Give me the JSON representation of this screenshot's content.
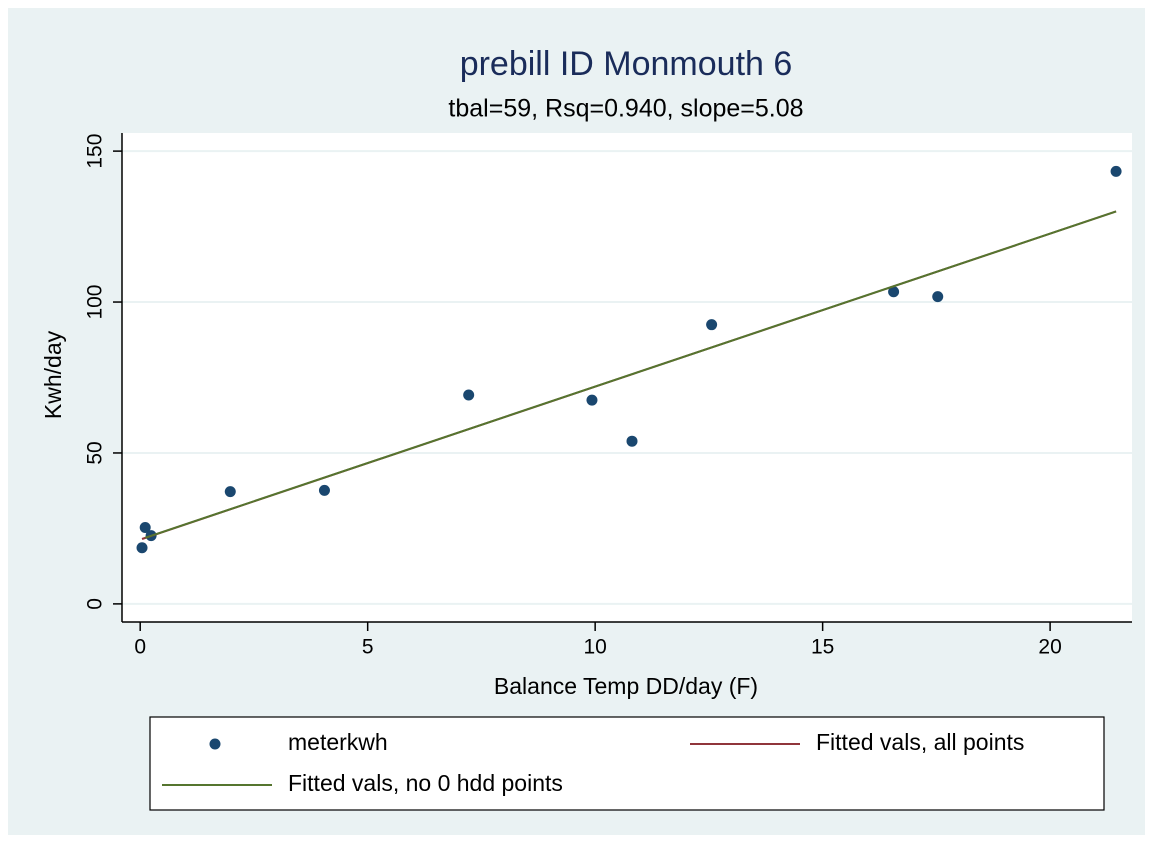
{
  "chart_data": {
    "type": "scatter",
    "title": "prebill  ID Monmouth 6",
    "subtitle": "tbal=59, Rsq=0.940, slope=5.08",
    "x_label": "Balance Temp DD/day (F)",
    "y_label": "Kwh/day",
    "xlim": [
      -0.4,
      21.8
    ],
    "xticks": [
      0,
      5,
      10,
      15,
      20
    ],
    "ylim": [
      -6,
      156
    ],
    "yticks": [
      0,
      50,
      100,
      150
    ],
    "grid": true,
    "legend": "bottom",
    "series": [
      {
        "name": "meterkwh",
        "type": "scatter",
        "color": "#1a476f",
        "x": [
          0.04,
          0.11,
          0.24,
          1.98,
          4.05,
          7.22,
          9.93,
          10.81,
          12.56,
          16.56,
          17.53,
          21.45
        ],
        "values": [
          18.6,
          25.3,
          22.6,
          37.2,
          37.6,
          69.2,
          67.5,
          53.9,
          92.5,
          103.4,
          101.8,
          143.3
        ]
      },
      {
        "name": "Fitted vals, all points",
        "type": "line",
        "color": "#90353b",
        "x": [
          0.04,
          21.45
        ],
        "values": [
          21.5,
          130.0
        ]
      },
      {
        "name": "Fitted vals, no 0 hdd points",
        "type": "line",
        "color": "#55752f",
        "x": [
          0.11,
          21.45
        ],
        "values": [
          21.9,
          130.0
        ]
      }
    ]
  }
}
